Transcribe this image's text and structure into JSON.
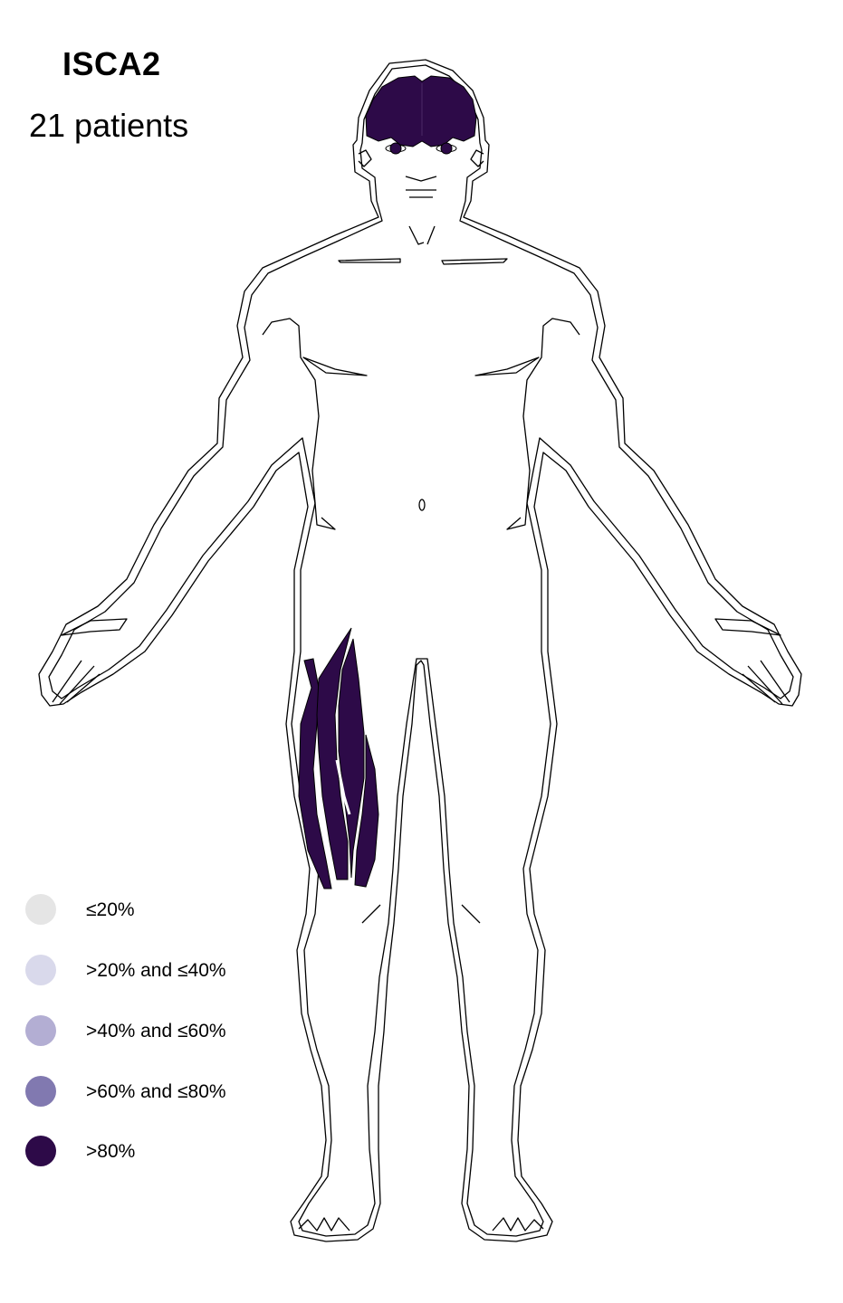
{
  "title": "ISCA2",
  "subtitle": "21 patients",
  "legend": [
    {
      "label": "≤20%",
      "color": "#e5e5e5"
    },
    {
      "label": ">20% and ≤40%",
      "color": "#d9d9eb"
    },
    {
      "label": ">40% and ≤60%",
      "color": "#b3aed3"
    },
    {
      "label": ">60% and ≤80%",
      "color": "#8179b0"
    },
    {
      "label": ">80%",
      "color": "#2d0a48"
    }
  ],
  "affected_regions": [
    {
      "region": "brain",
      "level": ">80%",
      "color": "#2d0a48"
    },
    {
      "region": "eyes",
      "level": ">80%",
      "color": "#2d0a48"
    },
    {
      "region": "thigh muscles",
      "level": ">80%",
      "color": "#2d0a48"
    }
  ]
}
